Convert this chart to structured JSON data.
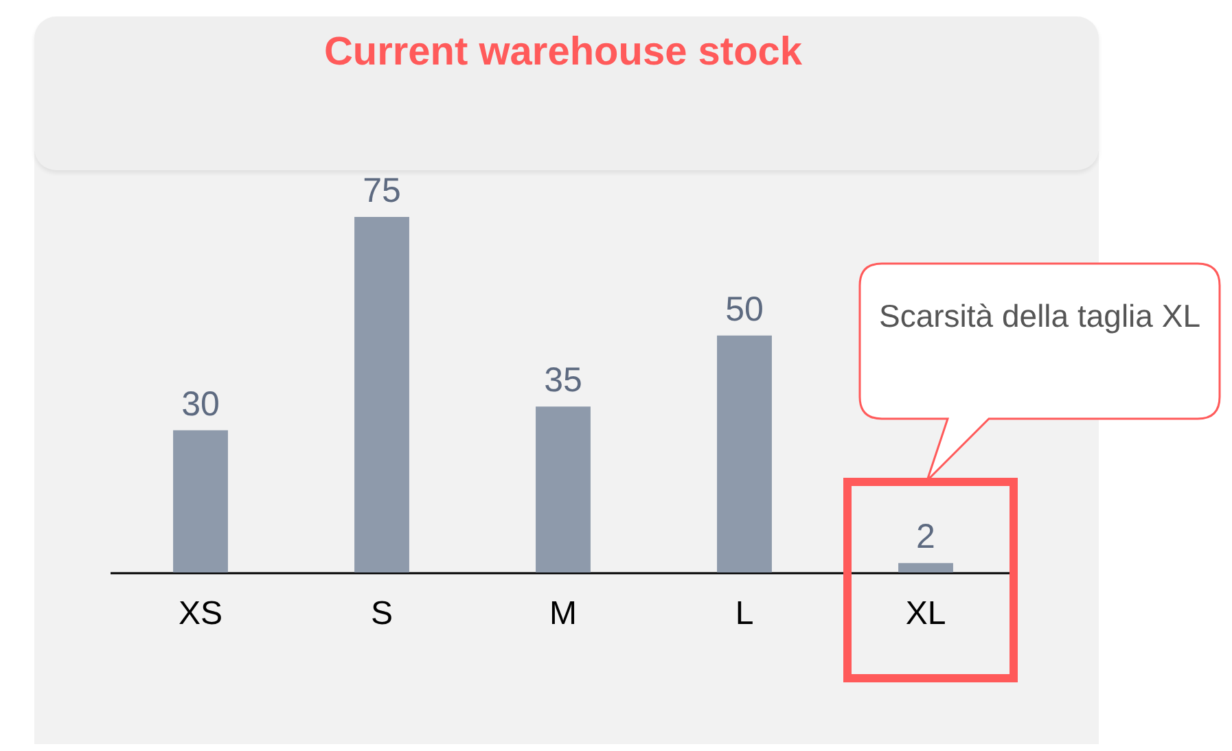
{
  "chart_data": {
    "type": "bar",
    "title": "Current warehouse stock",
    "categories": [
      "XS",
      "S",
      "M",
      "L",
      "XL"
    ],
    "values": [
      30,
      75,
      35,
      50,
      2
    ],
    "color": "#8e9aab",
    "data_labels": true,
    "grid": false,
    "annotations": [
      "Scarsità della taglia XL"
    ]
  }
}
